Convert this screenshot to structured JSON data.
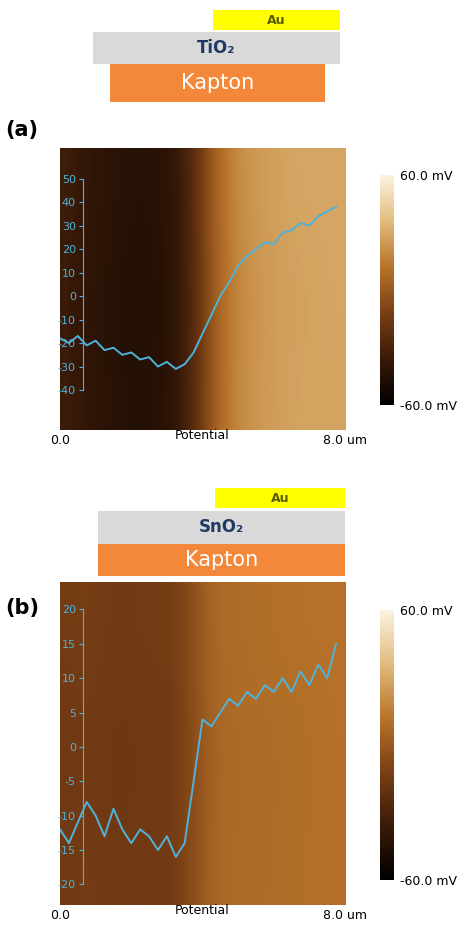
{
  "chart_data": [
    {
      "type": "line",
      "title": "(a)",
      "layers": [
        "Au",
        "TiO₂",
        "Kapton"
      ],
      "xlabel": "Potential",
      "xlim": [
        0,
        8
      ],
      "xticks": [
        {
          "value": 0,
          "label": "0.0"
        },
        {
          "value": 8,
          "label": "8.0 um"
        }
      ],
      "x": [
        0,
        0.25,
        0.5,
        0.75,
        1.0,
        1.25,
        1.5,
        1.75,
        2.0,
        2.25,
        2.5,
        2.75,
        3.0,
        3.25,
        3.5,
        3.75,
        4.0,
        4.25,
        4.5,
        4.75,
        5.0,
        5.25,
        5.5,
        5.75,
        6.0,
        6.25,
        6.5,
        6.75,
        7.0,
        7.25,
        7.5,
        7.75
      ],
      "values": [
        -18,
        -20,
        -17,
        -21,
        -19,
        -23,
        -22,
        -25,
        -24,
        -27,
        -26,
        -30,
        -28,
        -31,
        -29,
        -24,
        -16,
        -8,
        0,
        6,
        13,
        17,
        20,
        23,
        22,
        27,
        28,
        31,
        30,
        34,
        36,
        38
      ],
      "color": "#4fb3d9",
      "ylim": [
        -57,
        63
      ],
      "yticks": [
        -40,
        -30,
        -20,
        -10,
        0,
        10,
        20,
        30,
        40,
        50
      ],
      "cells": [
        [
          -35,
          -40,
          -42,
          -44,
          -45,
          -44,
          -40,
          -25,
          0,
          15,
          22,
          25,
          27,
          28,
          28,
          28
        ],
        [
          -36,
          -41,
          -43,
          -45,
          -46,
          -45,
          -41,
          -26,
          -1,
          14,
          21,
          24,
          26,
          27,
          28,
          29
        ],
        [
          -34,
          -39,
          -41,
          -43,
          -44,
          -43,
          -39,
          -24,
          1,
          16,
          23,
          26,
          28,
          29,
          29,
          29
        ]
      ],
      "colorbar": {
        "range": [
          -60,
          60
        ],
        "ticks": [
          {
            "value": -60,
            "label": "-60.0 mV"
          },
          {
            "value": 60,
            "label": "60.0 mV"
          }
        ]
      }
    },
    {
      "type": "line",
      "title": "(b)",
      "layers": [
        "Au",
        "SnO₂",
        "Kapton"
      ],
      "xlabel": "Potential",
      "xlim": [
        0,
        8
      ],
      "xticks": [
        {
          "value": 0,
          "label": "0.0"
        },
        {
          "value": 8,
          "label": "8.0 um"
        }
      ],
      "x": [
        0,
        0.25,
        0.5,
        0.75,
        1.0,
        1.25,
        1.5,
        1.75,
        2.0,
        2.25,
        2.5,
        2.75,
        3.0,
        3.25,
        3.5,
        3.75,
        4.0,
        4.25,
        4.5,
        4.75,
        5.0,
        5.25,
        5.5,
        5.75,
        6.0,
        6.25,
        6.5,
        6.75,
        7.0,
        7.25,
        7.5,
        7.75
      ],
      "values": [
        -12,
        -14,
        -11,
        -8,
        -10,
        -13,
        -9,
        -12,
        -14,
        -12,
        -13,
        -15,
        -13,
        -16,
        -14,
        -5,
        4,
        3,
        5,
        7,
        6,
        8,
        7,
        9,
        8,
        10,
        8,
        11,
        9,
        12,
        10,
        15
      ],
      "color": "#4fb3d9",
      "ylim": [
        -23,
        24
      ],
      "yticks": [
        -20,
        -15,
        -10,
        -5,
        0,
        5,
        10,
        15,
        20
      ],
      "cells": [
        [
          -15,
          -14,
          -15,
          -16,
          -15,
          -15,
          -14,
          -5,
          5,
          8,
          8,
          9,
          9,
          10,
          10,
          10
        ],
        [
          -16,
          -15,
          -16,
          -17,
          -16,
          -16,
          -15,
          -6,
          4,
          7,
          8,
          8,
          9,
          9,
          10,
          11
        ],
        [
          -14,
          -13,
          -14,
          -15,
          -14,
          -14,
          -13,
          -4,
          6,
          9,
          9,
          10,
          10,
          11,
          11,
          11
        ]
      ],
      "colorbar": {
        "range": [
          -60,
          60
        ],
        "ticks": [
          {
            "value": -60,
            "label": "-60.0 mV"
          },
          {
            "value": 60,
            "label": "60.0 mV"
          }
        ]
      }
    }
  ]
}
